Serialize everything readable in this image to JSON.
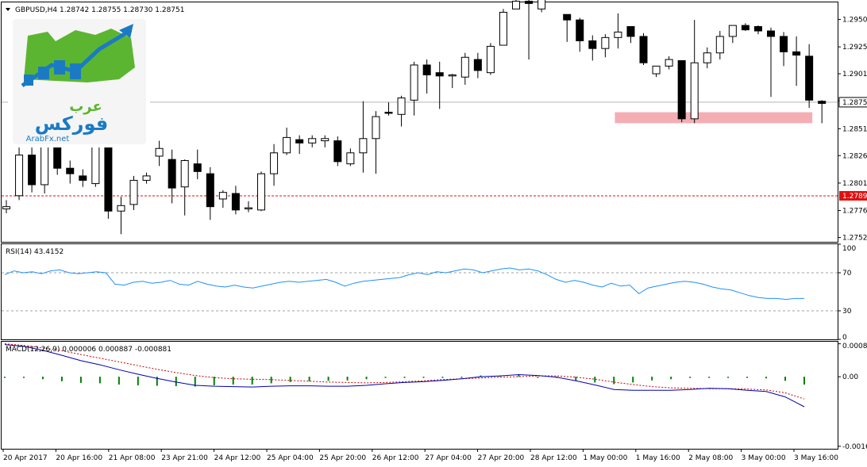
{
  "symbol_header": "GBPUSD,H4  1.28742 1.28755 1.28730 1.28751",
  "logo": {
    "line1": "عرب",
    "line2": "فوركس",
    "site": "ArabFx.net"
  },
  "chart_data": [
    {
      "id": "price",
      "type": "candlestick",
      "ylim": [
        1.2748,
        1.2966
      ],
      "yticks": [
        "1.29505",
        "1.29255",
        "1.29010",
        "1.28765",
        "1.28510",
        "1.28265",
        "1.28015",
        "1.27765",
        "1.27520"
      ],
      "ytick_values": [
        1.29505,
        1.29255,
        1.2901,
        1.28765,
        1.2851,
        1.28265,
        1.28015,
        1.27765,
        1.2752
      ],
      "current_price": "1.28751",
      "current_price_value": 1.28751,
      "level_price": "1.27899",
      "level_price_value": 1.27899,
      "support_zone": {
        "from_candle": 48,
        "to_candle": 63,
        "low": 1.2856,
        "high": 1.2866
      },
      "candles": [
        [
          1.2778,
          1.2786,
          1.2774,
          1.278
        ],
        [
          1.279,
          1.2839,
          1.2786,
          1.2827
        ],
        [
          1.2827,
          1.2839,
          1.2793,
          1.28
        ],
        [
          1.28,
          1.2841,
          1.2792,
          1.2838
        ],
        [
          1.2836,
          1.2839,
          1.2809,
          1.2815
        ],
        [
          1.2815,
          1.2822,
          1.2801,
          1.281
        ],
        [
          1.2808,
          1.2814,
          1.2798,
          1.2804
        ],
        [
          1.2801,
          1.284,
          1.2798,
          1.2836
        ],
        [
          1.2836,
          1.2838,
          1.2769,
          1.2776
        ],
        [
          1.2776,
          1.2789,
          1.2755,
          1.2781
        ],
        [
          1.2782,
          1.2808,
          1.2777,
          1.2804
        ],
        [
          1.2804,
          1.2811,
          1.2801,
          1.2808
        ],
        [
          1.2826,
          1.284,
          1.2817,
          1.2833
        ],
        [
          1.2823,
          1.2832,
          1.2783,
          1.2797
        ],
        [
          1.2798,
          1.2823,
          1.2772,
          1.2822
        ],
        [
          1.2819,
          1.2832,
          1.2805,
          1.2812
        ],
        [
          1.281,
          1.2816,
          1.2768,
          1.278
        ],
        [
          1.2787,
          1.2795,
          1.2779,
          1.2793
        ],
        [
          1.2792,
          1.2799,
          1.2773,
          1.2777
        ],
        [
          1.2778,
          1.2785,
          1.2775,
          1.2779
        ],
        [
          1.2777,
          1.2812,
          1.2776,
          1.281
        ],
        [
          1.281,
          1.2837,
          1.2799,
          1.2829
        ],
        [
          1.2829,
          1.2852,
          1.2827,
          1.2843
        ],
        [
          1.2841,
          1.2845,
          1.2828,
          1.2838
        ],
        [
          1.2838,
          1.2845,
          1.2834,
          1.2842
        ],
        [
          1.284,
          1.2845,
          1.2834,
          1.2842
        ],
        [
          1.284,
          1.2844,
          1.2817,
          1.2821
        ],
        [
          1.2819,
          1.2833,
          1.2817,
          1.2829
        ],
        [
          1.2829,
          1.2876,
          1.2811,
          1.2842
        ],
        [
          1.2842,
          1.2867,
          1.281,
          1.2862
        ],
        [
          1.2866,
          1.2875,
          1.2863,
          1.2865
        ],
        [
          1.2864,
          1.2881,
          1.2853,
          1.2879
        ],
        [
          1.2877,
          1.2912,
          1.2863,
          1.2909
        ],
        [
          1.2909,
          1.2914,
          1.2883,
          1.29
        ],
        [
          1.2902,
          1.2912,
          1.2869,
          1.2899
        ],
        [
          1.2899,
          1.2901,
          1.2888,
          1.29
        ],
        [
          1.2898,
          1.292,
          1.2891,
          1.2916
        ],
        [
          1.2914,
          1.292,
          1.2897,
          1.2904
        ],
        [
          1.2902,
          1.2929,
          1.29,
          1.2926
        ],
        [
          1.2927,
          1.296,
          1.2927,
          1.2957
        ],
        [
          1.296,
          1.2969,
          1.296,
          1.2967
        ],
        [
          1.2967,
          1.2971,
          1.2914,
          1.2965
        ],
        [
          1.296,
          1.298,
          1.2957,
          1.2977
        ],
        [
          1.2978,
          1.2978,
          1.2971,
          1.2975
        ],
        [
          1.2955,
          1.2955,
          1.293,
          1.295
        ],
        [
          1.295,
          1.2952,
          1.2921,
          1.2931
        ],
        [
          1.2931,
          1.2936,
          1.2913,
          1.2924
        ],
        [
          1.2924,
          1.2937,
          1.2916,
          1.2934
        ],
        [
          1.2934,
          1.2956,
          1.2924,
          1.2939
        ],
        [
          1.2944,
          1.2944,
          1.2929,
          1.2935
        ],
        [
          1.2935,
          1.2938,
          1.2909,
          1.2911
        ],
        [
          1.2901,
          1.2908,
          1.2898,
          1.2908
        ],
        [
          1.2908,
          1.2917,
          1.2905,
          1.2914
        ],
        [
          1.2913,
          1.2913,
          1.2857,
          1.286
        ],
        [
          1.286,
          1.295,
          1.2856,
          1.2911
        ],
        [
          1.2911,
          1.2925,
          1.2906,
          1.292
        ],
        [
          1.292,
          1.294,
          1.2914,
          1.2935
        ],
        [
          1.2935,
          1.2945,
          1.2929,
          1.2945
        ],
        [
          1.2945,
          1.2947,
          1.294,
          1.2941
        ],
        [
          1.2944,
          1.2945,
          1.2937,
          1.294
        ],
        [
          1.294,
          1.2943,
          1.288,
          1.2935
        ],
        [
          1.2935,
          1.2939,
          1.2908,
          1.2921
        ],
        [
          1.2921,
          1.2935,
          1.289,
          1.2918
        ],
        [
          1.2917,
          1.2928,
          1.287,
          1.2877
        ],
        [
          1.2876,
          1.2877,
          1.2856,
          1.2874
        ],
        [
          1.2874,
          1.2878,
          1.287,
          1.2876
        ],
        [
          1.2874,
          1.2876,
          1.2873,
          1.2875
        ]
      ]
    },
    {
      "id": "rsi",
      "type": "line",
      "label": "RSI(14) 43.4152",
      "ylim": [
        0,
        100
      ],
      "yticks": [
        "100",
        "70",
        "30",
        "0"
      ],
      "ytick_values": [
        100,
        70,
        30,
        0
      ],
      "levels": [
        70,
        30
      ],
      "color": "#1e90ff",
      "values": [
        68,
        72,
        70,
        71,
        69,
        72,
        73,
        70,
        69,
        70,
        71,
        70,
        58,
        57,
        60,
        61,
        59,
        60,
        62,
        58,
        57,
        61,
        58,
        56,
        55,
        57,
        55,
        54,
        56,
        58,
        60,
        61,
        60,
        61,
        62,
        63,
        60,
        56,
        59,
        61,
        62,
        63,
        64,
        65,
        68,
        70,
        68,
        71,
        70,
        72,
        74,
        73,
        70,
        72,
        74,
        75,
        73,
        74,
        72,
        68,
        63,
        60,
        62,
        60,
        57,
        55,
        59,
        56,
        57,
        48,
        54,
        56,
        58,
        60,
        61,
        60,
        58,
        55,
        53,
        52,
        49,
        46,
        44,
        43,
        43,
        42,
        43,
        43
      ]
    },
    {
      "id": "macd",
      "type": "line",
      "label": "MACD(12,26,9) 0.000006 0.000887 -0.000881",
      "ylim": [
        -0.00175,
        0.00085
      ],
      "yticks": [
        "0.00080",
        "0.00",
        "-0.00169"
      ],
      "ytick_values": [
        0.0008,
        0.0,
        -0.00169
      ],
      "series": [
        {
          "name": "MACD",
          "color": "#0000b4",
          "values": [
            0.00078,
            0.00074,
            0.00064,
            0.00052,
            0.00039,
            0.00029,
            0.00017,
            6e-05,
            -4e-05,
            -0.00013,
            -0.00021,
            -0.00023,
            -0.00024,
            -0.00025,
            -0.00023,
            -0.00022,
            -0.00022,
            -0.00023,
            -0.00023,
            -0.00021,
            -0.00017,
            -0.00014,
            -0.00012,
            -9e-05,
            -5e-05,
            0.0,
            2e-05,
            5e-05,
            3e-05,
            -1e-05,
            -0.0001,
            -0.0002,
            -0.00031,
            -0.00033,
            -0.00033,
            -0.00033,
            -0.00031,
            -0.00028,
            -0.00029,
            -0.00033,
            -0.00036,
            -0.00049,
            -0.00073
          ]
        },
        {
          "name": "Signal",
          "color": "#cc0000",
          "values": [
            0.0008,
            0.00076,
            0.0007,
            0.00063,
            0.00054,
            0.00045,
            0.00036,
            0.00027,
            0.00018,
            0.0001,
            3e-05,
            -2e-05,
            -5e-05,
            -6e-05,
            -7e-05,
            -9e-05,
            -0.00011,
            -0.00013,
            -0.00014,
            -0.00015,
            -0.00014,
            -0.00012,
            -0.0001,
            -7e-05,
            -5e-05,
            -3e-05,
            -1e-05,
            0.0,
            2e-05,
            2e-05,
            -1e-05,
            -6e-05,
            -0.00013,
            -0.00019,
            -0.00024,
            -0.00027,
            -0.00028,
            -0.00029,
            -0.00029,
            -0.0003,
            -0.00032,
            -0.00039,
            -0.00054
          ]
        },
        {
          "name": "Histogram",
          "color": "#008000",
          "values": [
            -2e-05,
            -2e-05,
            -6e-05,
            -0.00011,
            -0.00015,
            -0.00016,
            -0.00019,
            -0.00021,
            -0.00022,
            -0.00023,
            -0.00024,
            -0.00021,
            -0.00019,
            -0.00019,
            -0.00016,
            -0.00013,
            -0.00011,
            -0.0001,
            -9e-05,
            -6e-05,
            -3e-05,
            -2e-05,
            -2e-05,
            -2e-05,
            0.0,
            3e-05,
            3e-05,
            5e-05,
            1e-05,
            -3e-05,
            -9e-05,
            -0.00014,
            -0.00018,
            -0.00014,
            -9e-05,
            -6e-05,
            -3e-05,
            1e-05,
            0.0,
            -3e-05,
            -4e-05,
            -0.0001,
            -0.00019
          ]
        }
      ]
    }
  ],
  "time_axis": [
    "20 Apr 2017",
    "20 Apr 16:00",
    "21 Apr 08:00",
    "23 Apr 21:00",
    "24 Apr 12:00",
    "25 Apr 04:00",
    "25 Apr 20:00",
    "26 Apr 12:00",
    "27 Apr 04:00",
    "27 Apr 20:00",
    "28 Apr 12:00",
    "1 May 00:00",
    "1 May 16:00",
    "2 May 08:00",
    "3 May 00:00",
    "3 May 16:00"
  ]
}
